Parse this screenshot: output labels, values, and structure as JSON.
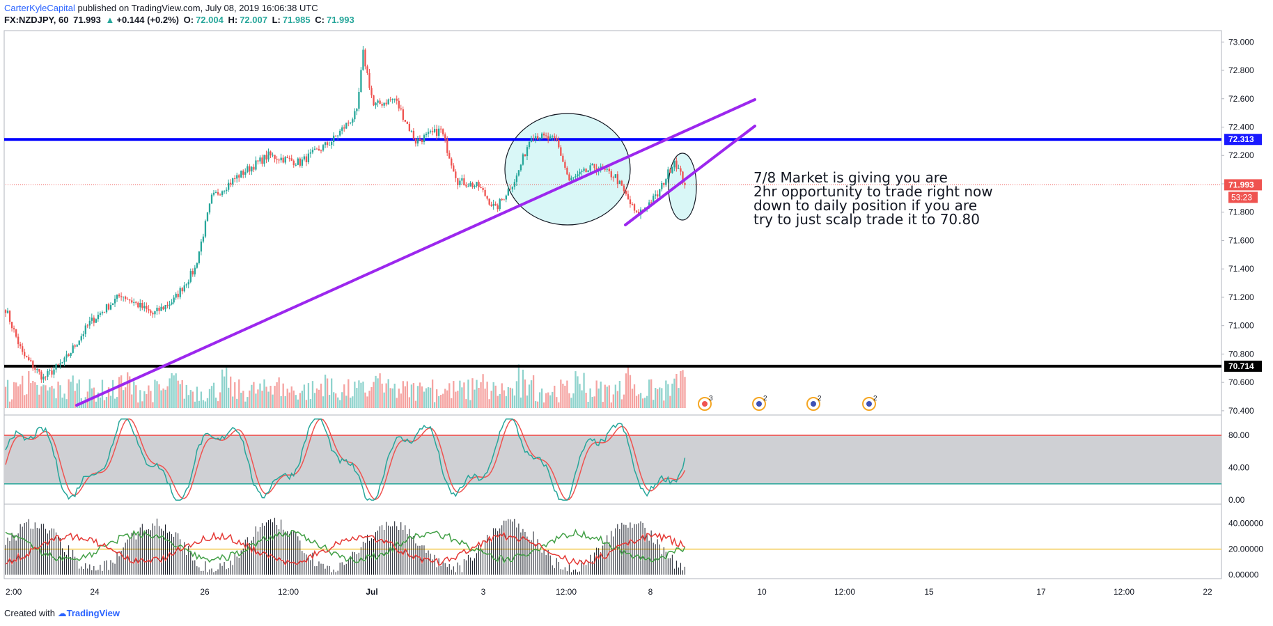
{
  "header": {
    "author": "CarterKyleCapital",
    "published": "published on TradingView.com, July 08, 2019 16:06:38 UTC",
    "symbol": "FX:NZDJPY, 60",
    "last": "71.993",
    "change_arrow": "▲",
    "change": "+0.144 (+0.2%)",
    "o_label": "O:",
    "o_value": "72.004",
    "h_label": "H:",
    "h_value": "72.007",
    "l_label": "L:",
    "l_value": "71.985",
    "c_label": "C:",
    "c_value": "71.993"
  },
  "annotation": {
    "lines": [
      "7/8 Market is giving you are",
      "2hr opportunity to trade right now",
      "down to daily position if you are",
      "try to just scalp trade it to 70.80"
    ]
  },
  "footer": {
    "created_with": "Created with",
    "brand": "TradingView"
  },
  "colors": {
    "up": "#26a69a",
    "down": "#ef5350",
    "up_vol": "#8fd3cd",
    "down_vol": "#f5a3a1",
    "resistance": "#0000ff",
    "support": "#000000",
    "trendline": "#9c27ee",
    "circle_fill": "#d9f7f7",
    "stoch_band": "#cfd0d4",
    "stoch_k": "#26a69a",
    "stoch_d": "#ef5350",
    "last_price": "#ef5350",
    "adx_green": "#43a047",
    "adx_red": "#e53935",
    "ref_line": "#f2c94c"
  },
  "chart_data": {
    "type": "candlestick",
    "symbol": "FX:NZDJPY",
    "timeframe": "60",
    "price_axis": {
      "ticks": [
        "73.000",
        "72.800",
        "72.600",
        "72.400",
        "72.200",
        "72.000",
        "71.800",
        "71.600",
        "71.400",
        "71.200",
        "71.000",
        "70.800",
        "70.600",
        "70.400"
      ],
      "range": [
        70.37,
        73.08
      ]
    },
    "time_axis": {
      "ticks": [
        "2:00",
        "24",
        "26",
        "12:00",
        "Jul",
        "3",
        "12:00",
        "8",
        "10",
        "12:00",
        "15",
        "17",
        "12:00",
        "22"
      ]
    },
    "levels": [
      {
        "label": "72.313",
        "value": 72.313,
        "color": "#0000ff"
      },
      {
        "label": "70.714",
        "value": 70.714,
        "color": "#000000"
      }
    ],
    "last_price": {
      "label": "71.993",
      "value": 71.993,
      "countdown": "53:23"
    },
    "anchors": [
      {
        "bar": 0,
        "price": 71.12
      },
      {
        "bar": 8,
        "price": 70.8
      },
      {
        "bar": 18,
        "price": 70.63
      },
      {
        "bar": 28,
        "price": 70.75
      },
      {
        "bar": 40,
        "price": 71.02
      },
      {
        "bar": 55,
        "price": 71.22
      },
      {
        "bar": 70,
        "price": 71.08
      },
      {
        "bar": 80,
        "price": 71.18
      },
      {
        "bar": 90,
        "price": 71.4
      },
      {
        "bar": 98,
        "price": 71.9
      },
      {
        "bar": 110,
        "price": 72.05
      },
      {
        "bar": 125,
        "price": 72.2
      },
      {
        "bar": 140,
        "price": 72.15
      },
      {
        "bar": 155,
        "price": 72.3
      },
      {
        "bar": 167,
        "price": 72.5
      },
      {
        "bar": 170,
        "price": 72.92
      },
      {
        "bar": 175,
        "price": 72.55
      },
      {
        "bar": 185,
        "price": 72.6
      },
      {
        "bar": 195,
        "price": 72.3
      },
      {
        "bar": 207,
        "price": 72.38
      },
      {
        "bar": 215,
        "price": 72.02
      },
      {
        "bar": 225,
        "price": 71.98
      },
      {
        "bar": 233,
        "price": 71.82
      },
      {
        "bar": 243,
        "price": 72.05
      },
      {
        "bar": 250,
        "price": 72.35
      },
      {
        "bar": 262,
        "price": 72.3
      },
      {
        "bar": 268,
        "price": 72.02
      },
      {
        "bar": 280,
        "price": 72.12
      },
      {
        "bar": 290,
        "price": 72.05
      },
      {
        "bar": 300,
        "price": 71.78
      },
      {
        "bar": 310,
        "price": 71.92
      },
      {
        "bar": 318,
        "price": 72.17
      },
      {
        "bar": 323,
        "price": 71.99
      }
    ],
    "volume_bars": 324,
    "lower_panes": [
      {
        "name": "stochastic",
        "ticks": [
          "80.00",
          "40.00",
          "0.00"
        ],
        "range": [
          -5,
          105
        ],
        "bands": [
          80,
          20
        ]
      },
      {
        "name": "adx",
        "ticks": [
          "40.00000",
          "20.00000",
          "0.00000"
        ],
        "range": [
          -3,
          55
        ],
        "ref": 20
      }
    ],
    "events": [
      {
        "count": "3"
      },
      {
        "count": "2"
      },
      {
        "count": "2"
      },
      {
        "count": "2"
      }
    ]
  }
}
